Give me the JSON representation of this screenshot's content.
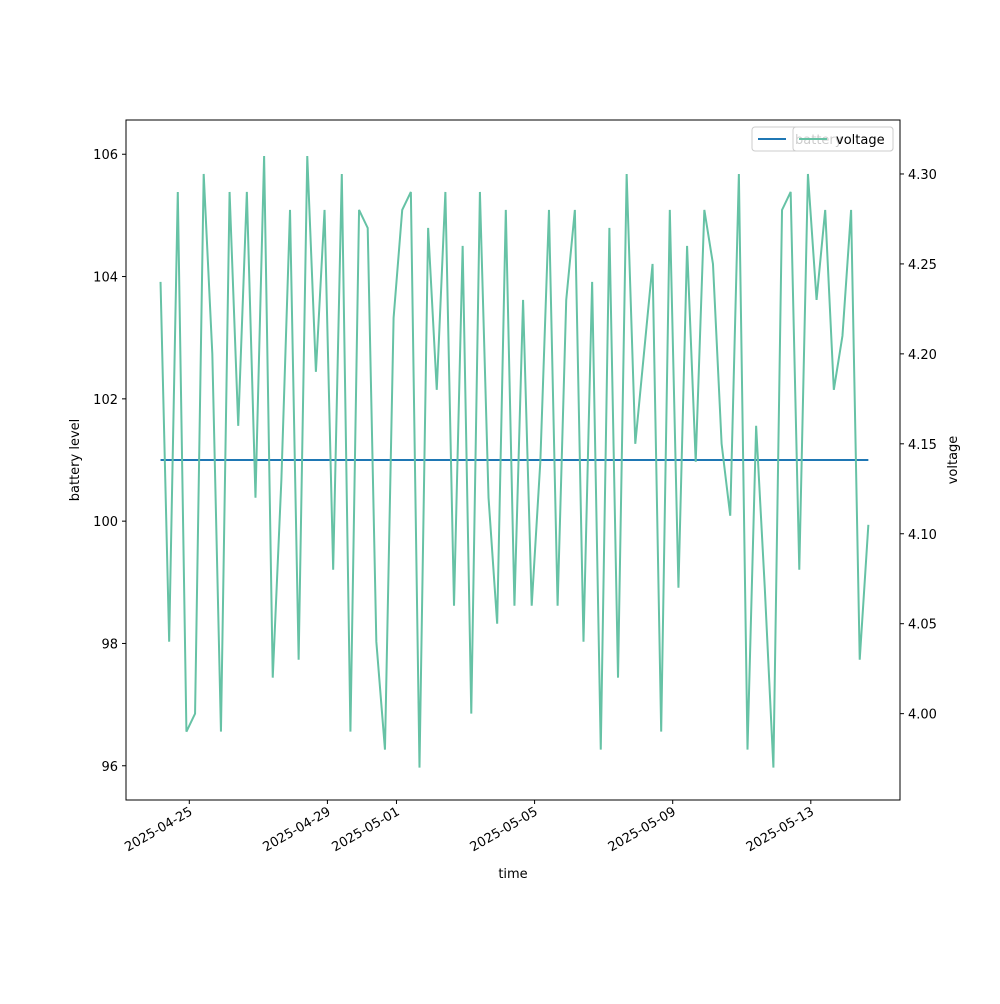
{
  "chart_data": {
    "type": "line",
    "xlabel": "time",
    "ylabel": "battery level",
    "y2label": "voltage",
    "xlim": [
      "2025-04-23 04:00",
      "2025-05-15 14:00"
    ],
    "xticks": [
      "2025-04-25",
      "2025-04-29",
      "2025-05-01",
      "2025-05-05",
      "2025-05-09",
      "2025-05-13"
    ],
    "ylim": [
      95.44,
      106.56
    ],
    "yticks": [
      96,
      98,
      100,
      102,
      104,
      106
    ],
    "y2lim": [
      3.952,
      4.33
    ],
    "y2ticks": [
      {
        "value": 4,
        "label": "4.00"
      },
      4.05,
      {
        "value": 4.1,
        "label": "4.10"
      },
      4.15,
      {
        "value": 4.2,
        "label": "4.20"
      },
      4.25,
      {
        "value": 4.3,
        "label": "4.30"
      }
    ],
    "legend": "upper right",
    "x": [
      "2025-04-24 04:00",
      "2025-04-24 10:00",
      "2025-04-24 16:00",
      "2025-04-24 22:00",
      "2025-04-25 04:00",
      "2025-04-25 10:00",
      "2025-04-25 16:00",
      "2025-04-25 22:00",
      "2025-04-26 04:00",
      "2025-04-26 10:00",
      "2025-04-26 16:00",
      "2025-04-26 22:00",
      "2025-04-27 04:00",
      "2025-04-27 10:00",
      "2025-04-27 16:00",
      "2025-04-27 22:00",
      "2025-04-28 04:00",
      "2025-04-28 10:00",
      "2025-04-28 16:00",
      "2025-04-28 22:00",
      "2025-04-29 04:00",
      "2025-04-29 10:00",
      "2025-04-29 16:00",
      "2025-04-29 22:00",
      "2025-04-30 04:00",
      "2025-04-30 10:00",
      "2025-04-30 16:00",
      "2025-04-30 22:00",
      "2025-05-01 04:00",
      "2025-05-01 10:00",
      "2025-05-01 16:00",
      "2025-05-01 22:00",
      "2025-05-02 04:00",
      "2025-05-02 10:00",
      "2025-05-02 16:00",
      "2025-05-02 22:00",
      "2025-05-03 04:00",
      "2025-05-03 10:00",
      "2025-05-03 16:00",
      "2025-05-03 22:00",
      "2025-05-04 04:00",
      "2025-05-04 10:00",
      "2025-05-04 16:00",
      "2025-05-04 22:00",
      "2025-05-05 04:00",
      "2025-05-05 10:00",
      "2025-05-05 16:00",
      "2025-05-05 22:00",
      "2025-05-06 04:00",
      "2025-05-06 10:00",
      "2025-05-06 16:00",
      "2025-05-06 22:00",
      "2025-05-07 04:00",
      "2025-05-07 10:00",
      "2025-05-07 16:00",
      "2025-05-07 22:00",
      "2025-05-08 04:00",
      "2025-05-08 10:00",
      "2025-05-08 16:00",
      "2025-05-08 22:00",
      "2025-05-09 04:00",
      "2025-05-09 10:00",
      "2025-05-09 16:00",
      "2025-05-09 22:00",
      "2025-05-10 04:00",
      "2025-05-10 10:00",
      "2025-05-10 16:00",
      "2025-05-10 22:00",
      "2025-05-11 04:00",
      "2025-05-11 10:00",
      "2025-05-11 16:00",
      "2025-05-11 22:00",
      "2025-05-12 04:00",
      "2025-05-12 10:00",
      "2025-05-12 16:00",
      "2025-05-12 22:00",
      "2025-05-13 04:00",
      "2025-05-13 10:00",
      "2025-05-13 16:00",
      "2025-05-13 22:00",
      "2025-05-14 04:00",
      "2025-05-14 10:00",
      "2025-05-14 16:00"
    ],
    "series": [
      {
        "name": "battery",
        "color": "#1f77b4",
        "values": [
          101,
          101,
          101,
          101,
          101,
          101,
          101,
          101,
          101,
          101,
          101,
          101,
          101,
          101,
          101,
          101,
          101,
          101,
          101,
          101,
          101,
          101,
          101,
          101,
          101,
          101,
          101,
          101,
          101,
          101,
          101,
          101,
          101,
          101,
          101,
          101,
          101,
          101,
          101,
          101,
          101,
          101,
          101,
          101,
          101,
          101,
          101,
          101,
          101,
          101,
          101,
          101,
          101,
          101,
          101,
          101,
          101,
          101,
          101,
          101,
          101,
          101,
          101,
          101,
          101,
          101,
          101,
          101,
          101,
          101,
          101,
          101,
          101,
          101,
          101,
          101,
          101,
          101,
          101,
          101,
          101,
          101,
          101
        ]
      },
      {
        "name": "voltage",
        "color": "#66c2a5",
        "axis": "y2",
        "values": [
          4.24,
          4.04,
          4.29,
          3.99,
          4.0,
          4.3,
          4.2,
          3.99,
          4.29,
          4.16,
          4.29,
          4.12,
          4.31,
          4.02,
          4.13,
          4.28,
          4.03,
          4.31,
          4.19,
          4.28,
          4.08,
          4.3,
          3.99,
          4.28,
          4.27,
          4.04,
          3.98,
          4.22,
          4.28,
          4.29,
          3.97,
          4.27,
          4.18,
          4.29,
          4.06,
          4.26,
          4.0,
          4.29,
          4.12,
          4.05,
          4.28,
          4.06,
          4.23,
          4.06,
          4.14,
          4.28,
          4.06,
          4.23,
          4.28,
          4.04,
          4.24,
          3.98,
          4.27,
          4.02,
          4.3,
          4.15,
          4.2,
          4.25,
          3.99,
          4.28,
          4.07,
          4.26,
          4.14,
          4.28,
          4.25,
          4.15,
          4.11,
          4.3,
          3.98,
          4.16,
          4.07,
          3.97,
          4.28,
          4.29,
          4.08,
          4.3,
          4.23,
          4.28,
          4.18,
          4.21,
          4.28,
          4.03,
          4.105
        ]
      }
    ]
  }
}
